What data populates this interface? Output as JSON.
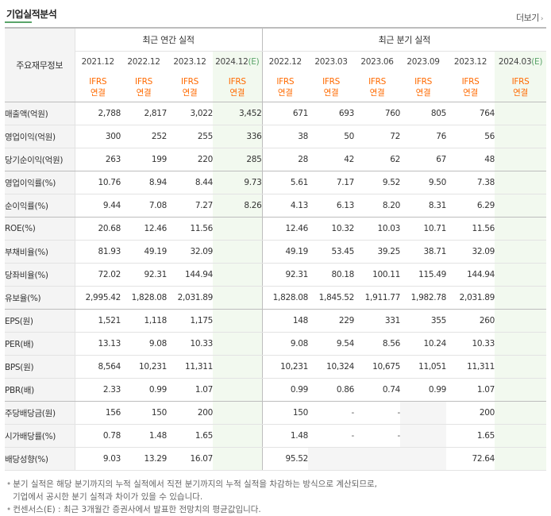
{
  "section_title": "기업실적분석",
  "more_link": "더보기",
  "headers": {
    "row_header": "주요재무정보",
    "annual_group": "최근 연간 실적",
    "quarterly_group": "최근 분기 실적",
    "periods": [
      "2021.12",
      "2022.12",
      "2023.12",
      "2024.12",
      "2022.12",
      "2023.03",
      "2023.06",
      "2023.09",
      "2023.12",
      "2024.03"
    ],
    "estimate_mark": "(E)",
    "standard_line1": "IFRS",
    "standard_line2": "연결"
  },
  "rows": [
    {
      "label": "매출액(억원)",
      "values": [
        "2,788",
        "2,817",
        "3,022",
        "3,452",
        "671",
        "693",
        "760",
        "805",
        "764",
        ""
      ]
    },
    {
      "label": "영업이익(억원)",
      "values": [
        "300",
        "252",
        "255",
        "336",
        "38",
        "50",
        "72",
        "76",
        "56",
        ""
      ]
    },
    {
      "label": "당기순이익(억원)",
      "values": [
        "263",
        "199",
        "220",
        "285",
        "28",
        "42",
        "62",
        "67",
        "48",
        ""
      ]
    },
    {
      "label": "영업이익률(%)",
      "values": [
        "10.76",
        "8.94",
        "8.44",
        "9.73",
        "5.61",
        "7.17",
        "9.52",
        "9.50",
        "7.38",
        ""
      ]
    },
    {
      "label": "순이익률(%)",
      "values": [
        "9.44",
        "7.08",
        "7.27",
        "8.26",
        "4.13",
        "6.13",
        "8.20",
        "8.31",
        "6.29",
        ""
      ]
    },
    {
      "label": "ROE(%)",
      "values": [
        "20.68",
        "12.46",
        "11.56",
        "",
        "12.46",
        "10.32",
        "10.03",
        "10.71",
        "11.56",
        ""
      ]
    },
    {
      "label": "부채비율(%)",
      "values": [
        "81.93",
        "49.19",
        "32.09",
        "",
        "49.19",
        "53.45",
        "39.25",
        "38.71",
        "32.09",
        ""
      ]
    },
    {
      "label": "당좌비율(%)",
      "values": [
        "72.02",
        "92.31",
        "144.94",
        "",
        "92.31",
        "80.18",
        "100.11",
        "115.49",
        "144.94",
        ""
      ]
    },
    {
      "label": "유보율(%)",
      "values": [
        "2,995.42",
        "1,828.08",
        "2,031.89",
        "",
        "1,828.08",
        "1,845.52",
        "1,911.77",
        "1,982.78",
        "2,031.89",
        ""
      ]
    },
    {
      "label": "EPS(원)",
      "values": [
        "1,521",
        "1,118",
        "1,175",
        "",
        "148",
        "229",
        "331",
        "355",
        "260",
        ""
      ]
    },
    {
      "label": "PER(배)",
      "values": [
        "13.13",
        "9.08",
        "10.33",
        "",
        "9.08",
        "9.54",
        "8.56",
        "10.24",
        "10.33",
        ""
      ]
    },
    {
      "label": "BPS(원)",
      "values": [
        "8,564",
        "10,231",
        "11,311",
        "",
        "10,231",
        "10,324",
        "10,675",
        "11,051",
        "11,311",
        ""
      ]
    },
    {
      "label": "PBR(배)",
      "values": [
        "2.33",
        "0.99",
        "1.07",
        "",
        "0.99",
        "0.86",
        "0.74",
        "0.99",
        "1.07",
        ""
      ]
    },
    {
      "label": "주당배당금(원)",
      "values": [
        "156",
        "150",
        "200",
        "",
        "150",
        "-",
        "-",
        "",
        "200",
        ""
      ]
    },
    {
      "label": "시가배당률(%)",
      "values": [
        "0.78",
        "1.48",
        "1.65",
        "",
        "1.48",
        "-",
        "-",
        "",
        "1.65",
        ""
      ]
    },
    {
      "label": "배당성향(%)",
      "values": [
        "9.03",
        "13.29",
        "16.07",
        "",
        "95.52",
        "",
        "",
        "",
        "72.64",
        ""
      ]
    }
  ],
  "notes": {
    "note1_line1": "분기 실적은 해당 분기까지의 누적 실적에서 직전 분기까지의 누적 실적을 차감하는 방식으로 계산되므로,",
    "note1_line2": "기업에서 공시한 분기 실적과 차이가 있을 수 있습니다.",
    "note2": "컨센서스(E) : 최근 3개월간 증권사에서 발표한 전망치의 평균값입니다."
  },
  "colors": {
    "accent_orange": "#ff6a00",
    "estimate_bg": "#f2f9ef",
    "estimate_green": "#5aa469",
    "label_bg": "#f4f4f4"
  }
}
